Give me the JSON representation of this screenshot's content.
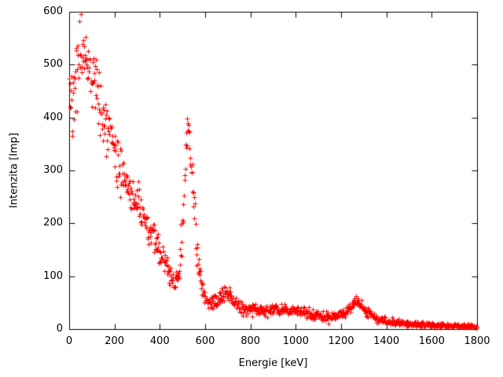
{
  "chart_data": {
    "type": "scatter",
    "title": "",
    "xlabel": "Energie [keV]",
    "ylabel": "Intenzita [Imp]",
    "xlim": [
      0,
      1800
    ],
    "ylim": [
      0,
      600
    ],
    "xticks": [
      0,
      200,
      400,
      600,
      800,
      1000,
      1200,
      1400,
      1600,
      1800
    ],
    "yticks": [
      0,
      100,
      200,
      300,
      400,
      500,
      600
    ],
    "grid": false,
    "legend": "none",
    "marker": "plus",
    "marker_color": "#ff0000",
    "frame_color": "#000000",
    "num_points": 1000,
    "envelope": {
      "x": [
        0,
        20,
        40,
        60,
        80,
        100,
        130,
        160,
        200,
        240,
        280,
        320,
        360,
        400,
        430,
        455,
        470,
        485,
        500,
        512,
        522,
        532,
        542,
        554,
        566,
        580,
        600,
        625,
        650,
        672,
        690,
        706,
        726,
        750,
        800,
        860,
        920,
        980,
        1040,
        1090,
        1140,
        1190,
        1230,
        1262,
        1285,
        1310,
        1350,
        1400,
        1460,
        1520,
        1600,
        1700,
        1800
      ],
      "mean": [
        430,
        470,
        500,
        520,
        515,
        480,
        430,
        390,
        330,
        290,
        250,
        215,
        180,
        148,
        118,
        95,
        88,
        108,
        190,
        320,
        375,
        360,
        290,
        205,
        130,
        85,
        58,
        48,
        50,
        62,
        72,
        68,
        52,
        42,
        38,
        36,
        38,
        36,
        32,
        27,
        23,
        26,
        38,
        50,
        46,
        34,
        22,
        15,
        12,
        10,
        8,
        6,
        5
      ],
      "spread": [
        110,
        90,
        80,
        75,
        70,
        60,
        55,
        50,
        45,
        40,
        38,
        35,
        32,
        28,
        25,
        20,
        18,
        22,
        45,
        50,
        35,
        40,
        48,
        45,
        33,
        24,
        15,
        13,
        13,
        14,
        15,
        14,
        13,
        12,
        11,
        11,
        11,
        11,
        10,
        9,
        9,
        9,
        10,
        11,
        10,
        9,
        8,
        7,
        6,
        6,
        5,
        4,
        4
      ]
    }
  }
}
